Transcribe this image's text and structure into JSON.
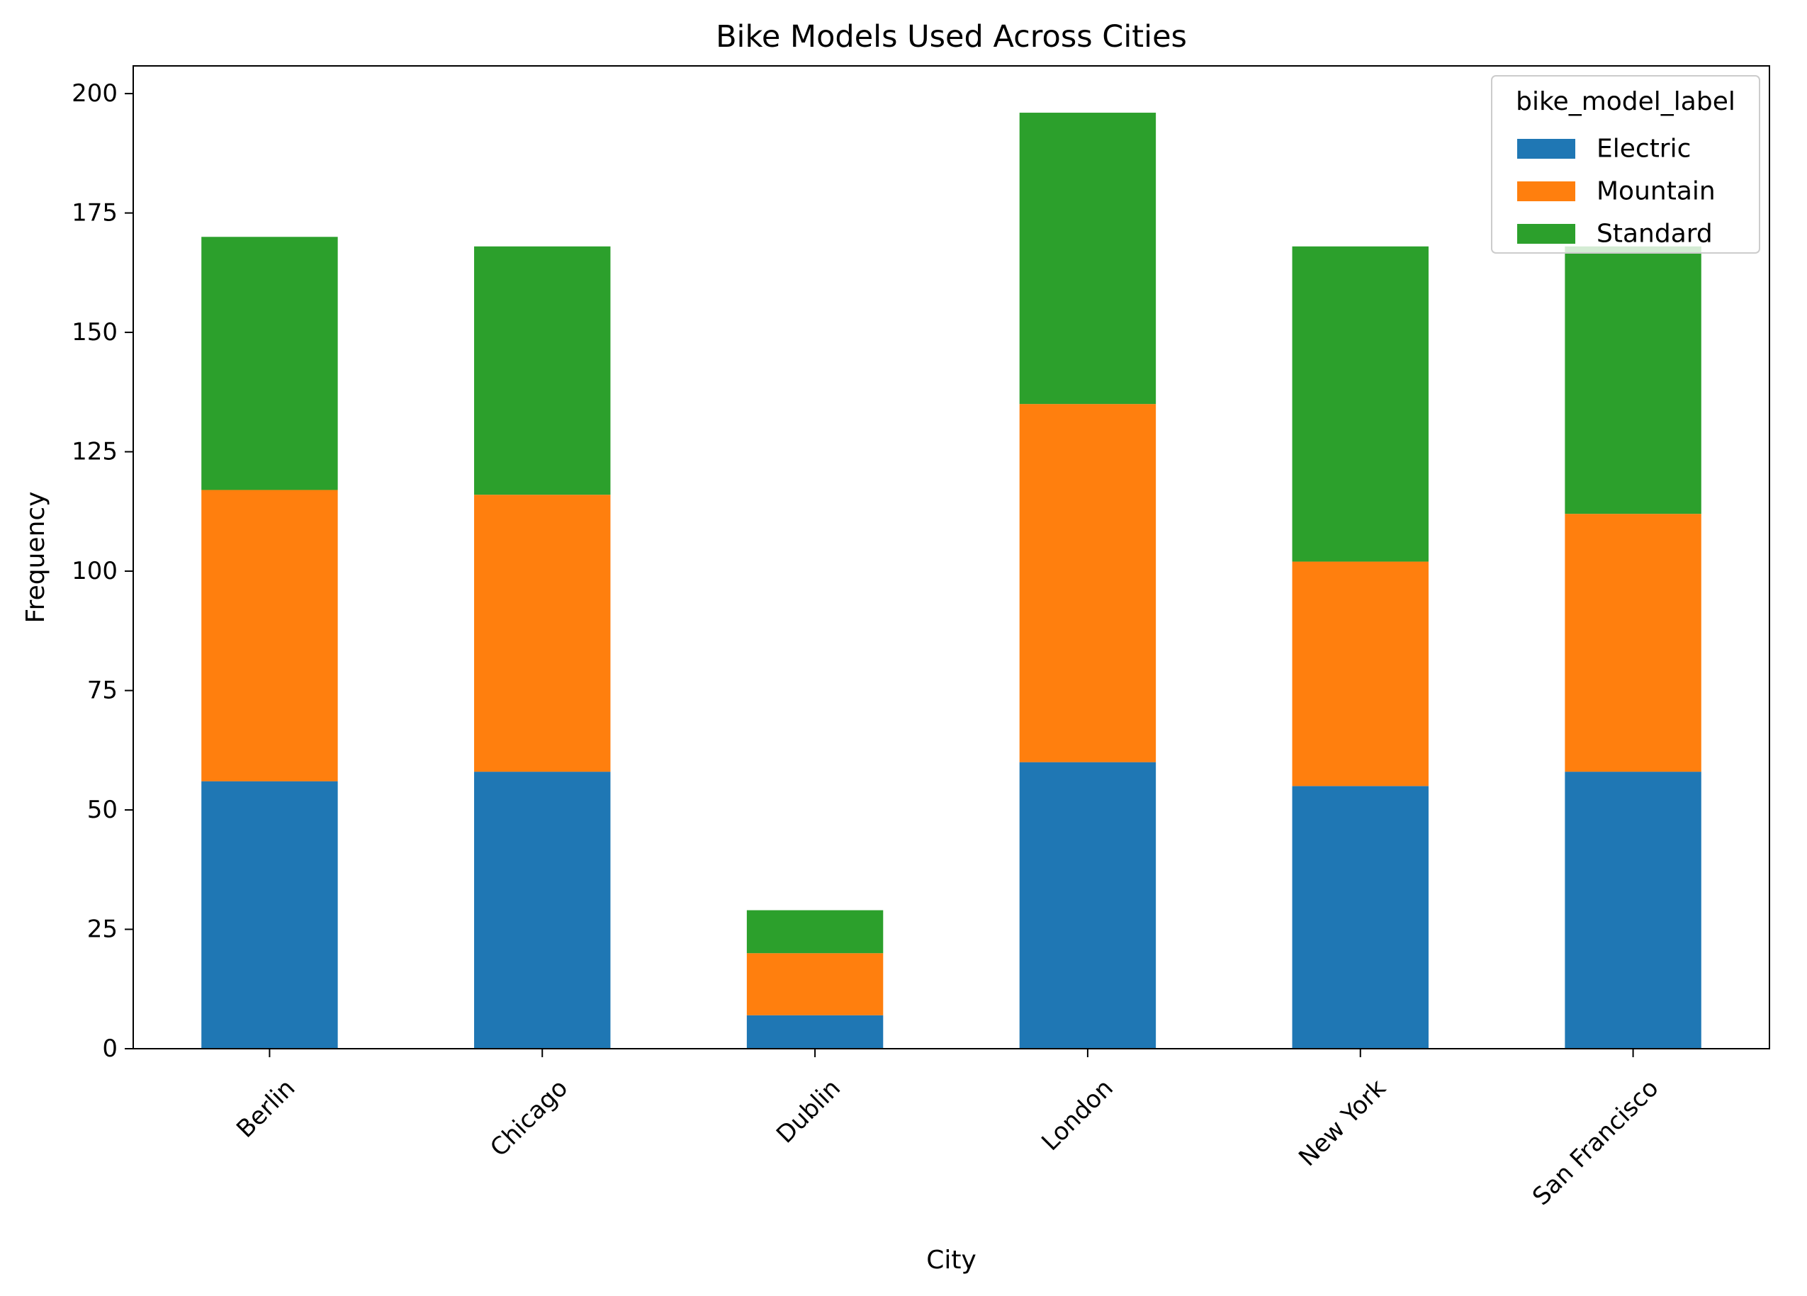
{
  "chart_data": {
    "type": "bar",
    "stacked": true,
    "title": "Bike Models Used Across Cities",
    "xlabel": "City",
    "ylabel": "Frequency",
    "categories": [
      "Berlin",
      "Chicago",
      "Dublin",
      "London",
      "New York",
      "San Francisco"
    ],
    "series": [
      {
        "name": "Electric",
        "color": "#1f77b4",
        "values": [
          56,
          58,
          7,
          60,
          55,
          58
        ]
      },
      {
        "name": "Mountain",
        "color": "#ff7f0e",
        "values": [
          61,
          58,
          13,
          75,
          47,
          54
        ]
      },
      {
        "name": "Standard",
        "color": "#2ca02c",
        "values": [
          53,
          52,
          9,
          61,
          66,
          56
        ]
      }
    ],
    "ylim": [
      0,
      205.8
    ],
    "yticks": [
      0,
      25,
      50,
      75,
      100,
      125,
      150,
      175,
      200
    ],
    "grid": false,
    "legend": {
      "title": "bike_model_label",
      "placement": "top-right"
    },
    "xtick_rotation": 45
  }
}
